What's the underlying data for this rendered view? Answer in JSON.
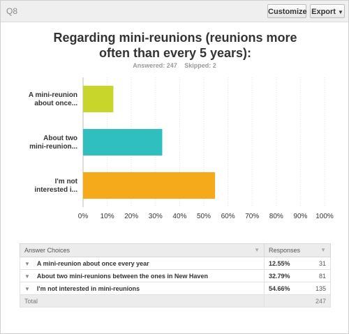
{
  "header": {
    "question_label": "Q8",
    "customize_label": "Customize",
    "export_label": "Export",
    "export_caret": "▼"
  },
  "question": {
    "title": "Regarding mini-reunions (reunions more often than every 5 years):",
    "answered": "Answered: 247",
    "skipped": "Skipped: 2"
  },
  "chart_data": {
    "type": "bar",
    "orientation": "horizontal",
    "categories": [
      "A mini-reunion about once...",
      "About two mini-reunion...",
      "I'm not interested i..."
    ],
    "category_lines": [
      [
        "A mini-reunion",
        "about once..."
      ],
      [
        "About two",
        "mini-reunion..."
      ],
      [
        "I'm not",
        "interested i..."
      ]
    ],
    "values": [
      12.55,
      32.79,
      54.66
    ],
    "colors": [
      "#c8d62b",
      "#2fbfbf",
      "#f5aa1c"
    ],
    "xlim": [
      0,
      100
    ],
    "xticks": [
      0,
      10,
      20,
      30,
      40,
      50,
      60,
      70,
      80,
      90,
      100
    ],
    "xtick_labels": [
      "0%",
      "10%",
      "20%",
      "30%",
      "40%",
      "50%",
      "60%",
      "70%",
      "80%",
      "90%",
      "100%"
    ],
    "grid": true
  },
  "table": {
    "headers": {
      "choice": "Answer Choices",
      "responses": "Responses",
      "sort_icon": "▼"
    },
    "rows": [
      {
        "choice": "A mini-reunion about once every year",
        "percent": "12.55%",
        "count": "31"
      },
      {
        "choice": "About two mini-reunions between the ones in New Haven",
        "percent": "32.79%",
        "count": "81"
      },
      {
        "choice": "I'm not interested in mini-reunions",
        "percent": "54.66%",
        "count": "135"
      }
    ],
    "total_label": "Total",
    "total_count": "247",
    "row_icon": "▼"
  }
}
